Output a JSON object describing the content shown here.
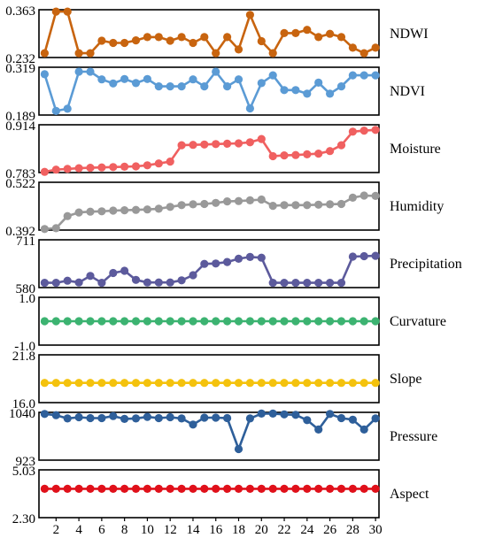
{
  "chart_data": {
    "type": "line",
    "x": [
      1,
      2,
      3,
      4,
      5,
      6,
      7,
      8,
      9,
      10,
      11,
      12,
      13,
      14,
      15,
      16,
      17,
      18,
      19,
      20,
      21,
      22,
      23,
      24,
      25,
      26,
      27,
      28,
      29,
      30
    ],
    "x_ticks": [
      2,
      4,
      6,
      8,
      10,
      12,
      14,
      16,
      18,
      20,
      22,
      24,
      26,
      28,
      30
    ],
    "x_tick_labels": [
      "2",
      "4",
      "6",
      "8",
      "10",
      "12",
      "14",
      "16",
      "18",
      "20",
      "22",
      "24",
      "26",
      "28",
      "30"
    ],
    "xlim": [
      0.5,
      30.3
    ],
    "panels": [
      {
        "name": "NDWI",
        "color": "#c8640f",
        "ylim": [
          0.232,
          0.363
        ],
        "ymin_label": "0.232",
        "ymax_label": "0.363",
        "values": [
          0.244,
          0.358,
          0.358,
          0.244,
          0.244,
          0.278,
          0.272,
          0.272,
          0.279,
          0.288,
          0.288,
          0.278,
          0.288,
          0.272,
          0.288,
          0.244,
          0.288,
          0.254,
          0.349,
          0.277,
          0.244,
          0.299,
          0.299,
          0.308,
          0.288,
          0.297,
          0.288,
          0.259,
          0.244,
          0.259
        ]
      },
      {
        "name": "NDVI",
        "color": "#5b9bd5",
        "ylim": [
          0.189,
          0.319
        ],
        "ymin_label": "0.189",
        "ymax_label": "0.319",
        "values": [
          0.3,
          0.2,
          0.206,
          0.307,
          0.307,
          0.286,
          0.275,
          0.287,
          0.276,
          0.287,
          0.267,
          0.267,
          0.267,
          0.286,
          0.267,
          0.307,
          0.267,
          0.286,
          0.207,
          0.276,
          0.297,
          0.257,
          0.257,
          0.247,
          0.277,
          0.247,
          0.267,
          0.297,
          0.297,
          0.297
        ]
      },
      {
        "name": "Moisture",
        "color": "#f06060",
        "ylim": [
          0.783,
          0.914
        ],
        "ymin_label": "0.783",
        "ymax_label": "0.914",
        "values": [
          0.785,
          0.791,
          0.793,
          0.795,
          0.796,
          0.797,
          0.798,
          0.799,
          0.8,
          0.803,
          0.808,
          0.813,
          0.858,
          0.859,
          0.86,
          0.861,
          0.862,
          0.863,
          0.866,
          0.875,
          0.828,
          0.83,
          0.831,
          0.833,
          0.835,
          0.842,
          0.858,
          0.895,
          0.898,
          0.9
        ]
      },
      {
        "name": "Humidity",
        "color": "#999999",
        "ylim": [
          0.392,
          0.522
        ],
        "ymin_label": "0.392",
        "ymax_label": "0.522",
        "values": [
          0.395,
          0.397,
          0.43,
          0.44,
          0.442,
          0.443,
          0.445,
          0.446,
          0.447,
          0.448,
          0.45,
          0.455,
          0.46,
          0.462,
          0.463,
          0.466,
          0.47,
          0.471,
          0.473,
          0.475,
          0.458,
          0.46,
          0.46,
          0.46,
          0.461,
          0.462,
          0.463,
          0.48,
          0.486,
          0.485
        ]
      },
      {
        "name": "Precipitation",
        "color": "#5c5a9c",
        "ylim": [
          580,
          711
        ],
        "ymin_label": "580",
        "ymax_label": "711",
        "values": [
          593,
          593,
          599,
          594,
          612,
          593,
          620,
          626,
          601,
          594,
          594,
          594,
          600,
          614,
          645,
          646,
          650,
          659,
          664,
          662,
          593,
          593,
          593,
          593,
          593,
          593,
          593,
          665,
          666,
          667
        ]
      },
      {
        "name": "Curvature",
        "color": "#3cb371",
        "ylim": [
          -1.0,
          1.0
        ],
        "ymin_label": "-1.0",
        "ymax_label": "1.0",
        "values": [
          0,
          0,
          0,
          0,
          0,
          0,
          0,
          0,
          0,
          0,
          0,
          0,
          0,
          0,
          0,
          0,
          0,
          0,
          0,
          0,
          0,
          0,
          0,
          0,
          0,
          0,
          0,
          0,
          0,
          0
        ]
      },
      {
        "name": "Slope",
        "color": "#f4c20d",
        "ylim": [
          16.0,
          21.8
        ],
        "ymin_label": "16.0",
        "ymax_label": "21.8",
        "values": [
          18.4,
          18.4,
          18.4,
          18.4,
          18.4,
          18.4,
          18.4,
          18.4,
          18.4,
          18.4,
          18.4,
          18.4,
          18.4,
          18.4,
          18.4,
          18.4,
          18.4,
          18.4,
          18.4,
          18.4,
          18.4,
          18.4,
          18.4,
          18.4,
          18.4,
          18.4,
          18.4,
          18.4,
          18.4,
          18.4
        ]
      },
      {
        "name": "Pressure",
        "color": "#2e5f9a",
        "ylim": [
          923,
          1040
        ],
        "ymin_label": "923",
        "ymax_label": "1040",
        "values": [
          1036,
          1033,
          1025,
          1028,
          1026,
          1026,
          1031,
          1024,
          1025,
          1029,
          1026,
          1028,
          1025,
          1010,
          1027,
          1027,
          1026,
          950,
          1025,
          1037,
          1037,
          1035,
          1034,
          1021,
          998,
          1036,
          1026,
          1022,
          998,
          1025
        ]
      },
      {
        "name": "Aspect",
        "color": "#e0101a",
        "ylim": [
          2.3,
          5.03
        ],
        "ymin_label": "2.30",
        "ymax_label": "5.03",
        "values": [
          3.95,
          3.95,
          3.95,
          3.95,
          3.95,
          3.95,
          3.95,
          3.95,
          3.95,
          3.95,
          3.95,
          3.95,
          3.95,
          3.95,
          3.95,
          3.95,
          3.95,
          3.95,
          3.95,
          3.95,
          3.95,
          3.95,
          3.95,
          3.95,
          3.95,
          3.95,
          3.95,
          3.95,
          3.95,
          3.95
        ]
      }
    ]
  }
}
